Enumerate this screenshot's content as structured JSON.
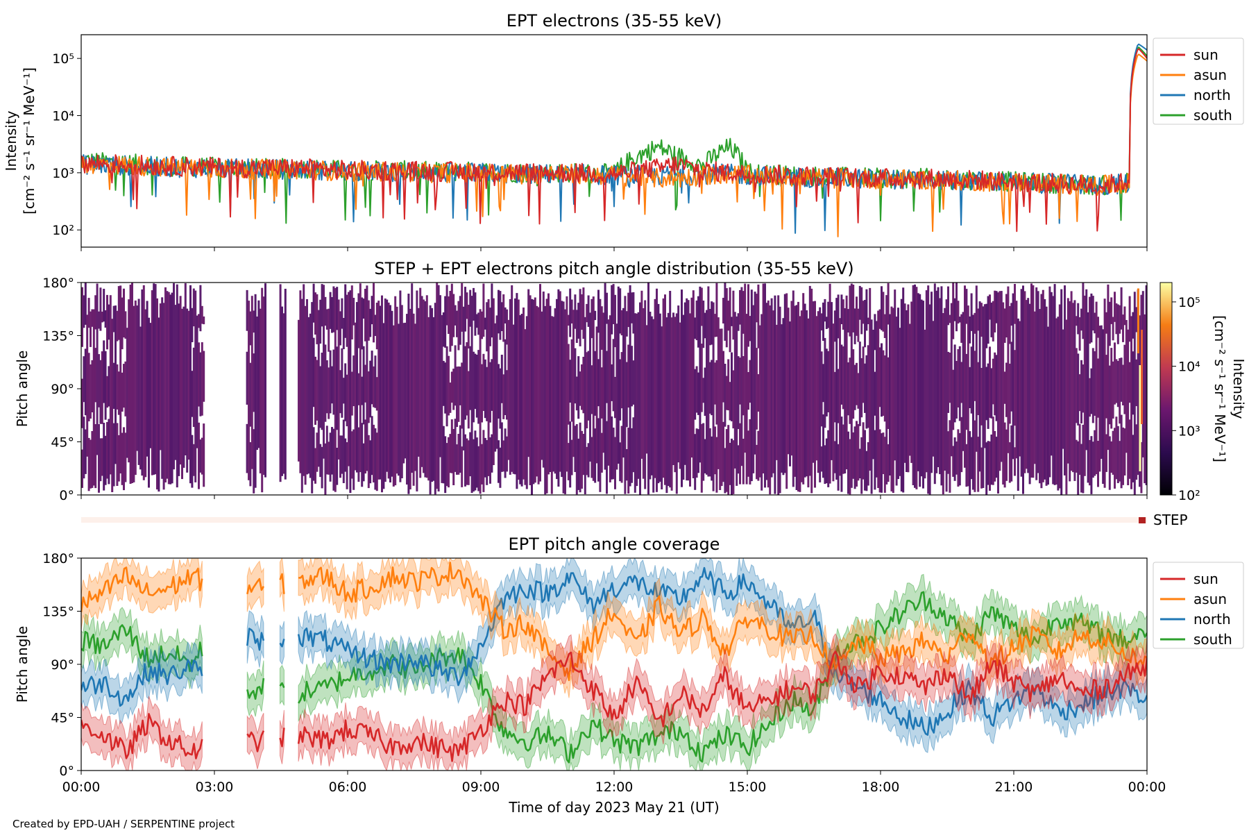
{
  "figure": {
    "credit": "Created by EPD-UAH / SERPENTINE project",
    "xlabel": "Time of day 2023 May 21 (UT)",
    "x_ticks": [
      "00:00",
      "03:00",
      "06:00",
      "09:00",
      "12:00",
      "15:00",
      "18:00",
      "21:00",
      "00:00"
    ]
  },
  "colors": {
    "sun": "#d62728",
    "asun": "#ff7f0e",
    "north": "#1f77b4",
    "south": "#2ca02c",
    "pad": "#5b1e6e",
    "step_bar": "#fdf0ea",
    "step_marker": "#b22222"
  },
  "chart_data": [
    {
      "type": "line",
      "title": "EPT electrons (35-55 keV)",
      "ylabel_line1": "Intensity",
      "ylabel_line2": "[cm⁻² s⁻¹ sr⁻¹ MeV⁻¹]",
      "y_scale": "log",
      "y_ticks": [
        "10²",
        "10³",
        "10⁴",
        "10⁵"
      ],
      "x_unit": "hours since 2023-05-21 00:00 UT",
      "xlim": [
        0,
        24
      ],
      "ylim": [
        50,
        260000
      ],
      "legend_position": "outside-right-top",
      "series": [
        {
          "name": "sun",
          "x": [
            0,
            1,
            2,
            3,
            4,
            5,
            6,
            7,
            8,
            9,
            10,
            11,
            12,
            13,
            13.4,
            14,
            14.6,
            15,
            16,
            17,
            18,
            19,
            20,
            21,
            22,
            23,
            23.6,
            23.8,
            24
          ],
          "y": [
            1500,
            1400,
            1300,
            1250,
            1200,
            1200,
            1100,
            1100,
            1050,
            1050,
            1000,
            1000,
            950,
            1200,
            1400,
            1100,
            1000,
            950,
            900,
            850,
            800,
            800,
            750,
            700,
            650,
            600,
            700,
            150000,
            100000
          ]
        },
        {
          "name": "asun",
          "x": [
            0,
            1,
            2,
            3,
            4,
            5,
            6,
            7,
            8,
            9,
            10,
            11,
            12,
            13,
            13.4,
            14,
            14.6,
            15,
            16,
            17,
            18,
            19,
            20,
            21,
            22,
            23,
            23.6,
            23.8,
            24
          ],
          "y": [
            1450,
            1350,
            1250,
            1200,
            1150,
            1150,
            1050,
            1050,
            1000,
            1000,
            950,
            950,
            900,
            800,
            800,
            900,
            950,
            900,
            850,
            800,
            780,
            760,
            720,
            680,
            640,
            600,
            650,
            120000,
            90000
          ]
        },
        {
          "name": "north",
          "x": [
            0,
            1,
            2,
            3,
            4,
            5,
            6,
            7,
            8,
            9,
            10,
            11,
            12,
            13,
            13.4,
            14,
            14.6,
            15,
            16,
            17,
            18,
            19,
            20,
            21,
            22,
            23,
            23.6,
            23.8,
            24
          ],
          "y": [
            1400,
            1350,
            1250,
            1200,
            1150,
            1150,
            1050,
            1050,
            1000,
            1000,
            950,
            950,
            900,
            900,
            900,
            950,
            950,
            900,
            850,
            800,
            780,
            760,
            720,
            680,
            640,
            600,
            650,
            180000,
            140000
          ]
        },
        {
          "name": "south",
          "x": [
            0,
            1,
            2,
            3,
            4,
            5,
            6,
            7,
            8,
            9,
            10,
            11,
            12,
            13,
            13.4,
            14,
            14.6,
            15,
            16,
            17,
            18,
            19,
            20,
            21,
            22,
            23,
            23.6,
            23.8,
            24
          ],
          "y": [
            1600,
            1450,
            1300,
            1250,
            1200,
            1200,
            1100,
            1100,
            1050,
            1050,
            1000,
            1000,
            950,
            2800,
            2000,
            1300,
            2800,
            1000,
            900,
            850,
            800,
            800,
            750,
            700,
            650,
            600,
            700,
            160000,
            110000
          ]
        }
      ]
    },
    {
      "type": "heatmap",
      "title": "STEP + EPT electrons pitch angle distribution (35-55 keV)",
      "ylabel": "Pitch angle",
      "y_ticks": [
        "0°",
        "45°",
        "90°",
        "135°",
        "180°"
      ],
      "ylim": [
        0,
        180
      ],
      "x_unit": "hours since 2023-05-21 00:00 UT",
      "xlim": [
        0,
        24
      ],
      "colorbar": {
        "label_line1": "Intensity",
        "label_line2": "[cm⁻² s⁻¹ sr⁻¹ MeV⁻¹]",
        "ticks": [
          "10²",
          "10³",
          "10⁴",
          "10⁵"
        ],
        "range": [
          100,
          200000
        ],
        "scale": "log"
      },
      "data_gaps": [
        [
          2.75,
          3.7
        ],
        [
          4.15,
          4.45
        ],
        [
          4.6,
          4.85
        ]
      ],
      "step_label": "STEP"
    },
    {
      "type": "line",
      "title": "EPT pitch angle coverage",
      "ylabel": "Pitch angle",
      "y_ticks": [
        "0°",
        "45°",
        "90°",
        "135°",
        "180°"
      ],
      "ylim": [
        0,
        180
      ],
      "x_unit": "hours since 2023-05-21 00:00 UT",
      "xlim": [
        0,
        24
      ],
      "legend_position": "outside-right-top",
      "band_halfwidth_deg": 15,
      "series": [
        {
          "name": "sun",
          "x": [
            0,
            0.5,
            1,
            1.5,
            2,
            2.5,
            2.75,
            3.7,
            4.0,
            4.15,
            4.85,
            5.5,
            6,
            6.5,
            7,
            7.5,
            8,
            8.5,
            9,
            9.5,
            10,
            10.5,
            11,
            11.5,
            12,
            12.5,
            13,
            13.5,
            14,
            14.5,
            15,
            15.5,
            16,
            16.5,
            17,
            17.5,
            18,
            18.5,
            19,
            19.5,
            20,
            20.5,
            21,
            21.5,
            22,
            22.5,
            23,
            23.5,
            24
          ],
          "y": [
            40,
            30,
            15,
            40,
            25,
            15,
            20,
            25,
            25,
            25,
            30,
            25,
            35,
            30,
            20,
            25,
            20,
            15,
            35,
            60,
            55,
            80,
            95,
            70,
            45,
            75,
            40,
            65,
            50,
            80,
            50,
            60,
            70,
            65,
            95,
            70,
            85,
            80,
            70,
            85,
            60,
            90,
            75,
            65,
            80,
            65,
            70,
            80,
            90
          ]
        },
        {
          "name": "asun",
          "x": [
            0,
            0.5,
            1,
            1.5,
            2,
            2.5,
            2.75,
            3.7,
            4.0,
            4.15,
            4.85,
            5.5,
            6,
            6.5,
            7,
            7.5,
            8,
            8.5,
            9,
            9.5,
            10,
            10.5,
            11,
            11.5,
            12,
            12.5,
            13,
            13.5,
            14,
            14.5,
            15,
            15.5,
            16,
            16.5,
            17,
            17.5,
            18,
            18.5,
            19,
            19.5,
            20,
            20.5,
            21,
            21.5,
            22,
            22.5,
            23,
            23.5,
            24
          ],
          "y": [
            140,
            150,
            165,
            150,
            155,
            165,
            160,
            155,
            155,
            155,
            160,
            165,
            150,
            155,
            165,
            160,
            165,
            170,
            145,
            120,
            125,
            100,
            85,
            110,
            135,
            105,
            140,
            115,
            130,
            100,
            130,
            120,
            110,
            115,
            85,
            110,
            95,
            100,
            110,
            95,
            120,
            90,
            105,
            115,
            100,
            115,
            110,
            100,
            90
          ]
        },
        {
          "name": "north",
          "x": [
            0,
            0.5,
            1,
            1.5,
            2,
            2.5,
            2.75,
            3.7,
            4.0,
            4.15,
            4.85,
            5.5,
            6,
            6.5,
            7,
            7.5,
            8,
            8.5,
            9,
            9.5,
            10,
            10.5,
            11,
            11.5,
            12,
            12.5,
            13,
            13.5,
            14,
            14.5,
            15,
            15.5,
            16,
            16.5,
            17,
            17.5,
            18,
            18.5,
            19,
            19.5,
            20,
            20.5,
            21,
            21.5,
            22,
            22.5,
            23,
            23.5,
            24
          ],
          "y": [
            70,
            75,
            60,
            85,
            80,
            90,
            75,
            115,
            110,
            110,
            115,
            110,
            100,
            95,
            90,
            95,
            85,
            80,
            105,
            145,
            155,
            150,
            165,
            140,
            155,
            160,
            150,
            145,
            165,
            150,
            160,
            140,
            120,
            130,
            80,
            70,
            60,
            45,
            35,
            50,
            70,
            45,
            60,
            70,
            50,
            55,
            65,
            70,
            60
          ]
        },
        {
          "name": "south",
          "x": [
            0,
            0.5,
            1,
            1.5,
            2,
            2.5,
            2.75,
            3.7,
            4.0,
            4.15,
            4.85,
            5.5,
            6,
            6.5,
            7,
            7.5,
            8,
            8.5,
            9,
            9.5,
            10,
            10.5,
            11,
            11.5,
            12,
            12.5,
            13,
            13.5,
            14,
            14.5,
            15,
            15.5,
            16,
            16.5,
            17,
            17.5,
            18,
            18.5,
            19,
            19.5,
            20,
            20.5,
            21,
            21.5,
            22,
            22.5,
            23,
            23.5,
            24
          ],
          "y": [
            110,
            105,
            120,
            95,
            100,
            90,
            105,
            65,
            70,
            70,
            65,
            70,
            80,
            85,
            90,
            85,
            95,
            100,
            75,
            35,
            25,
            30,
            15,
            40,
            25,
            20,
            30,
            35,
            15,
            30,
            20,
            40,
            60,
            50,
            100,
            110,
            120,
            135,
            145,
            130,
            110,
            135,
            120,
            110,
            130,
            125,
            115,
            110,
            120
          ]
        }
      ]
    }
  ]
}
